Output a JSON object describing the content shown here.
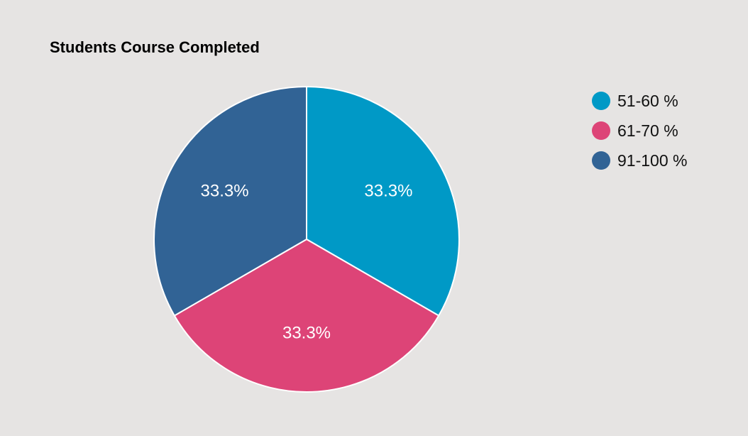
{
  "chart_data": {
    "type": "pie",
    "title": "Students Course Completed",
    "legend_position": "right",
    "slices": [
      {
        "label": "51-60 %",
        "value": 33.3,
        "display": "33.3%",
        "color": "#0099c6"
      },
      {
        "label": "61-70 %",
        "value": 33.3,
        "display": "33.3%",
        "color": "#dd4477"
      },
      {
        "label": "91-100 %",
        "value": 33.3,
        "display": "33.3%",
        "color": "#316395"
      }
    ]
  }
}
